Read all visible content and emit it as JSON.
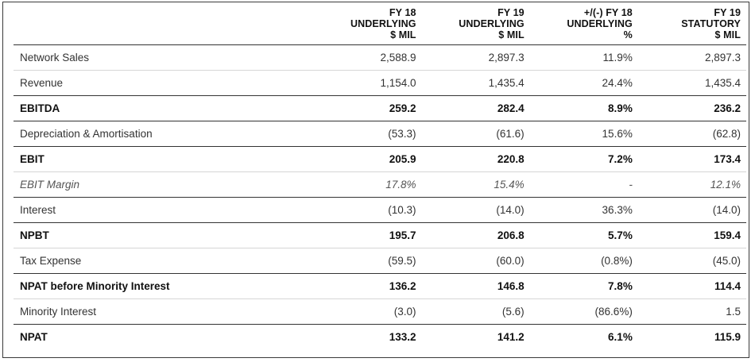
{
  "columns": [
    {
      "line1": "FY 18",
      "line2": "UNDERLYING",
      "line3": "$ MIL"
    },
    {
      "line1": "FY 19",
      "line2": "UNDERLYING",
      "line3": "$ MIL"
    },
    {
      "line1": "+/(-) FY 18",
      "line2": "UNDERLYING",
      "line3": "%"
    },
    {
      "line1": "FY 19",
      "line2": "STATUTORY",
      "line3": "$ MIL"
    }
  ],
  "rows": [
    {
      "label": "Network Sales",
      "fy18": "2,588.9",
      "fy19": "2,897.3",
      "change": "11.9%",
      "statutory": "2,897.3"
    },
    {
      "label": "Revenue",
      "fy18": "1,154.0",
      "fy19": "1,435.4",
      "change": "24.4%",
      "statutory": "1,435.4"
    },
    {
      "label": "EBITDA",
      "fy18": "259.2",
      "fy19": "282.4",
      "change": "8.9%",
      "statutory": "236.2"
    },
    {
      "label": "Depreciation & Amortisation",
      "fy18": "(53.3)",
      "fy19": "(61.6)",
      "change": "15.6%",
      "statutory": "(62.8)"
    },
    {
      "label": "EBIT",
      "fy18": "205.9",
      "fy19": "220.8",
      "change": "7.2%",
      "statutory": "173.4"
    },
    {
      "label": "EBIT Margin",
      "fy18": "17.8%",
      "fy19": "15.4%",
      "change": "-",
      "statutory": "12.1%"
    },
    {
      "label": "Interest",
      "fy18": "(10.3)",
      "fy19": "(14.0)",
      "change": "36.3%",
      "statutory": "(14.0)"
    },
    {
      "label": "NPBT",
      "fy18": "195.7",
      "fy19": "206.8",
      "change": "5.7%",
      "statutory": "159.4"
    },
    {
      "label": "Tax Expense",
      "fy18": "(59.5)",
      "fy19": "(60.0)",
      "change": "(0.8%)",
      "statutory": "(45.0)"
    },
    {
      "label": "NPAT before Minority Interest",
      "fy18": "136.2",
      "fy19": "146.8",
      "change": "7.8%",
      "statutory": "114.4"
    },
    {
      "label": "Minority Interest",
      "fy18": "(3.0)",
      "fy19": "(5.6)",
      "change": "(86.6%)",
      "statutory": "1.5"
    },
    {
      "label": "NPAT",
      "fy18": "133.2",
      "fy19": "141.2",
      "change": "6.1%",
      "statutory": "115.9"
    }
  ]
}
